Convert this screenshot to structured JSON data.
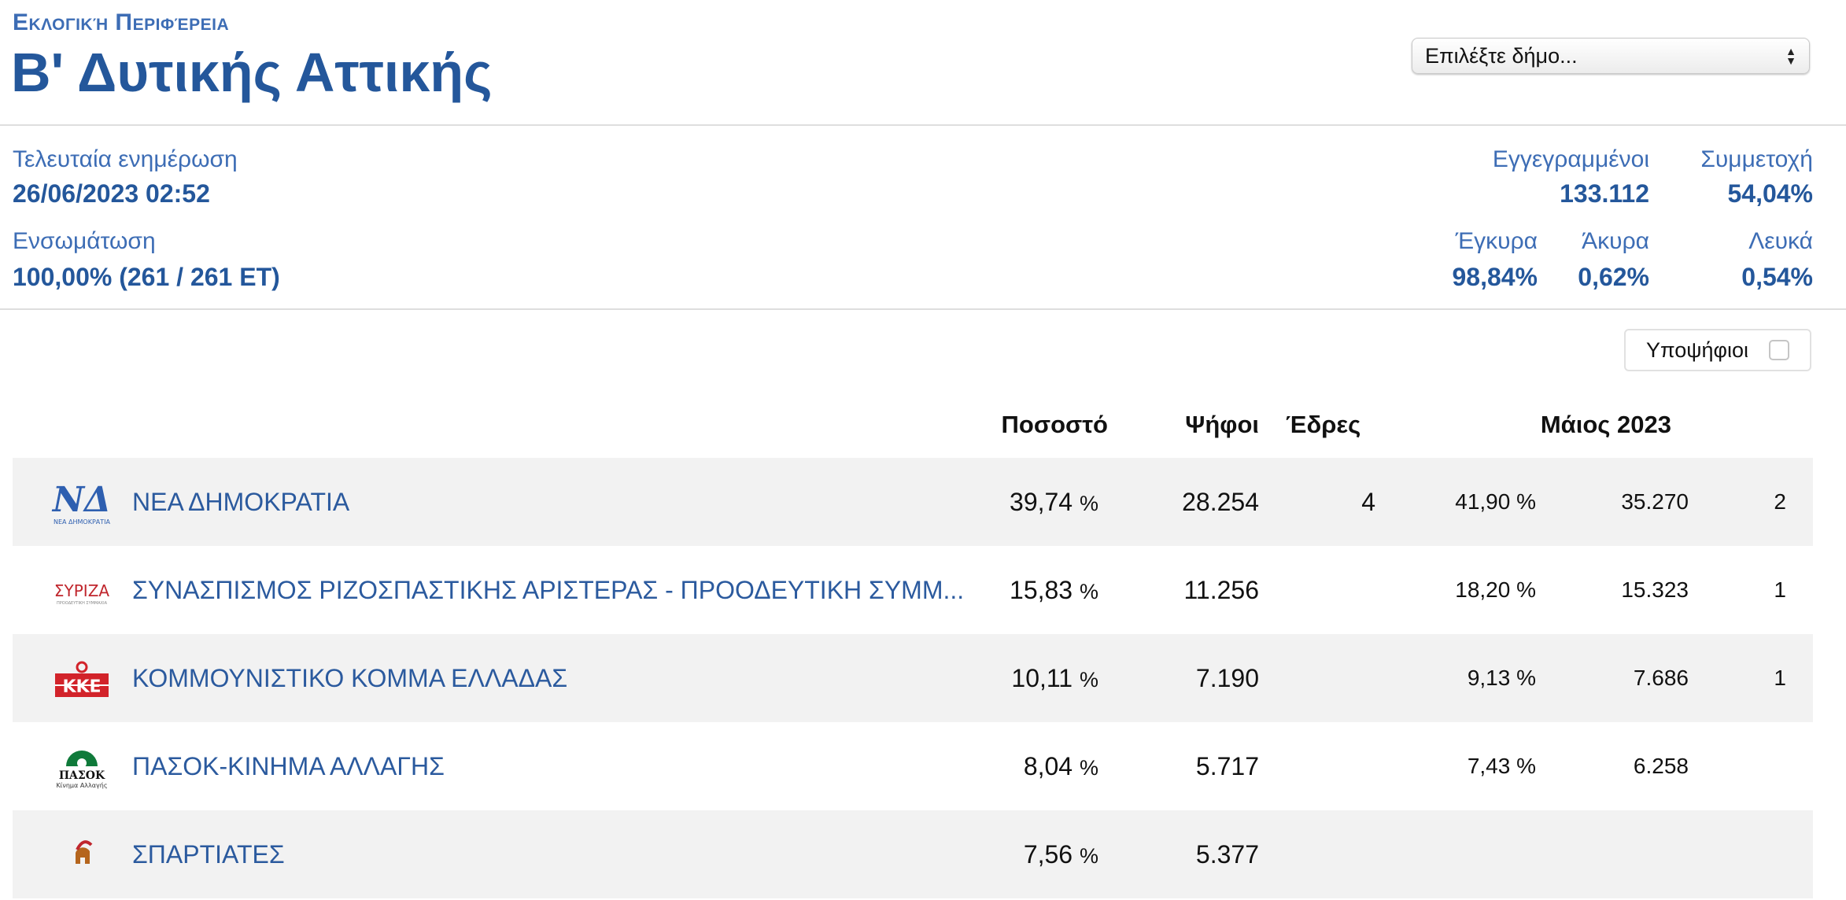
{
  "header": {
    "region_label": "Εκλογική Περιφέρεια",
    "region_title": "Β' Δυτικής Αττικής",
    "select_placeholder": "Επιλέξτε δήμο...",
    "select_arrow_up": "▲",
    "select_arrow_down": "▼"
  },
  "meta": {
    "last_update_label": "Τελευταία ενημέρωση",
    "last_update_value": "26/06/2023 02:52",
    "integration_label": "Ενσωμάτωση",
    "integration_value": "100,00% (261 / 261 ΕΤ)",
    "registered_label": "Εγγεγραμμένοι",
    "registered_value": "133.112",
    "turnout_label": "Συμμετοχή",
    "turnout_value": "54,04%",
    "valid_label": "Έγκυρα",
    "valid_value": "98,84%",
    "invalid_label": "Άκυρα",
    "invalid_value": "0,62%",
    "blank_label": "Λευκά",
    "blank_value": "0,54%"
  },
  "candidates_toggle": {
    "label": "Υποψήφιοι",
    "checked": false
  },
  "table": {
    "headers": {
      "percent": "Ποσοστό",
      "votes": "Ψήφοι",
      "seats": "Έδρες",
      "previous": "Μάιος 2023"
    },
    "rows": [
      {
        "logo": "nd-logo",
        "logo_text": "ΝΔ",
        "logo_sub": "ΝΕΑ ΔΗΜΟΚΡΑΤΙΑ",
        "name": "ΝΕΑ ΔΗΜΟΚΡΑΤΙΑ",
        "percent": "39,74",
        "pct_sign": "%",
        "votes": "28.254",
        "seats": "4",
        "prev_percent": "41,90 %",
        "prev_votes": "35.270",
        "prev_seats": "2"
      },
      {
        "logo": "syriza-logo",
        "logo_text": "ΣΥΡΙΖΑ",
        "logo_sub": "ΠΡΟΟΔΕΥΤΙΚΗ ΣΥΜΜΑΧΙΑ",
        "name": "ΣΥΝΑΣΠΙΣΜΟΣ ΡΙΖΟΣΠΑΣΤΙΚΗΣ ΑΡΙΣΤΕΡΑΣ - ΠΡΟΟΔΕΥΤΙΚΗ ΣΥΜΜ...",
        "percent": "15,83",
        "pct_sign": "%",
        "votes": "11.256",
        "seats": "",
        "prev_percent": "18,20 %",
        "prev_votes": "15.323",
        "prev_seats": "1"
      },
      {
        "logo": "kke-logo",
        "logo_text": "ΚΚΕ",
        "logo_sub": "",
        "name": "ΚΟΜΜΟΥΝΙΣΤΙΚΟ ΚΟΜΜΑ ΕΛΛΑΔΑΣ",
        "percent": "10,11",
        "pct_sign": "%",
        "votes": "7.190",
        "seats": "",
        "prev_percent": "9,13 %",
        "prev_votes": "7.686",
        "prev_seats": "1"
      },
      {
        "logo": "pasok-logo",
        "logo_text": "ΠΑΣΟΚ",
        "logo_sub": "Κίνημα Αλλαγής",
        "name": "ΠΑΣΟΚ-ΚΙΝΗΜΑ ΑΛΛΑΓΗΣ",
        "percent": "8,04",
        "pct_sign": "%",
        "votes": "5.717",
        "seats": "",
        "prev_percent": "7,43 %",
        "prev_votes": "6.258",
        "prev_seats": ""
      },
      {
        "logo": "spartiates-logo",
        "logo_text": "",
        "logo_sub": "",
        "name": "ΣΠΑΡΤΙΑΤΕΣ",
        "percent": "7,56",
        "pct_sign": "%",
        "votes": "5.377",
        "seats": "",
        "prev_percent": "",
        "prev_votes": "",
        "prev_seats": ""
      }
    ]
  },
  "colors": {
    "title_blue": "#24579b",
    "label_blue": "#3d6db5",
    "nd_blue": "#2e5fb0",
    "syriza_red": "#c0262d",
    "kke_red": "#d2232a",
    "pasok_green": "#0f7a3a",
    "row_shade": "#f2f2f2"
  }
}
